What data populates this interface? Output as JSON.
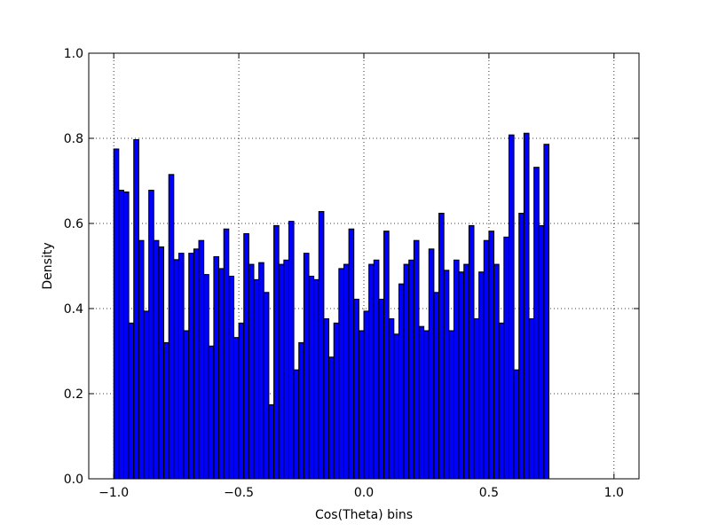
{
  "chart_data": {
    "type": "bar",
    "title": "",
    "xlabel": "Cos(Theta) bins",
    "ylabel": "Density",
    "xlim": [
      -1.1,
      1.1
    ],
    "ylim": [
      0,
      1.0
    ],
    "grid": true,
    "bar_color": "#0000ff",
    "edge_color": "#000000",
    "bin_start": -1.0,
    "bin_width": 0.02,
    "x_ticks": [
      -1.0,
      -0.5,
      0.0,
      0.5,
      1.0
    ],
    "x_tick_labels": [
      "−1.0",
      "−0.5",
      "0.0",
      "0.5",
      "1.0"
    ],
    "y_ticks": [
      0.0,
      0.2,
      0.4,
      0.6,
      0.8,
      1.0
    ],
    "y_tick_labels": [
      "0.0",
      "0.2",
      "0.4",
      "0.6",
      "0.8",
      "1.0"
    ],
    "values": [
      0.775,
      0.678,
      0.674,
      0.366,
      0.797,
      0.56,
      0.394,
      0.678,
      0.56,
      0.545,
      0.32,
      0.715,
      0.515,
      0.53,
      0.348,
      0.53,
      0.54,
      0.56,
      0.48,
      0.312,
      0.522,
      0.494,
      0.587,
      0.476,
      0.332,
      0.366,
      0.576,
      0.504,
      0.468,
      0.508,
      0.438,
      0.174,
      0.595,
      0.504,
      0.514,
      0.605,
      0.256,
      0.32,
      0.53,
      0.476,
      0.468,
      0.628,
      0.376,
      0.286,
      0.366,
      0.494,
      0.504,
      0.587,
      0.422,
      0.348,
      0.394,
      0.504,
      0.514,
      0.422,
      0.582,
      0.376,
      0.34,
      0.458,
      0.504,
      0.514,
      0.56,
      0.358,
      0.348,
      0.54,
      0.438,
      0.624,
      0.49,
      0.348,
      0.514,
      0.486,
      0.504,
      0.595,
      0.376,
      0.486,
      0.56,
      0.582,
      0.504,
      0.366,
      0.568,
      0.808,
      0.256,
      0.624,
      0.812,
      0.376,
      0.732,
      0.595,
      0.786
    ]
  }
}
